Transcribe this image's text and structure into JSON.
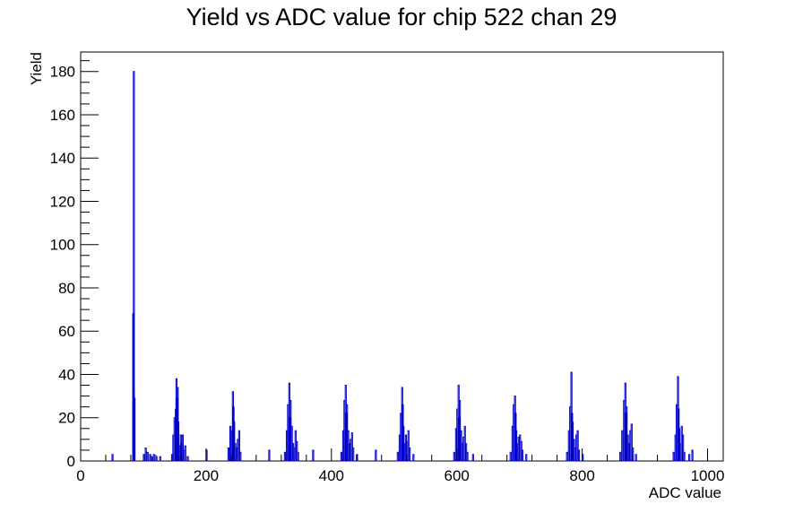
{
  "chart_data": {
    "type": "histogram",
    "title": "Yield vs ADC value for chip 522 chan 29",
    "xlabel": "ADC value",
    "ylabel": "Yield",
    "xlim": [
      0,
      1025
    ],
    "ylim": [
      0,
      189
    ],
    "x_ticks": [
      0,
      200,
      400,
      600,
      800,
      1000
    ],
    "y_ticks": [
      0,
      20,
      40,
      60,
      80,
      100,
      120,
      140,
      160,
      180
    ],
    "bin_width": 1,
    "line_color": "#0000cc",
    "grid": false,
    "legend": false,
    "bins": [
      [
        50,
        3
      ],
      [
        83,
        68
      ],
      [
        84,
        180
      ],
      [
        85,
        29
      ],
      [
        100,
        3
      ],
      [
        103,
        6
      ],
      [
        106,
        4
      ],
      [
        110,
        3
      ],
      [
        113,
        2
      ],
      [
        116,
        3
      ],
      [
        120,
        2
      ],
      [
        126,
        2
      ],
      [
        145,
        3
      ],
      [
        147,
        12
      ],
      [
        149,
        20
      ],
      [
        151,
        24
      ],
      [
        152,
        38
      ],
      [
        153,
        29
      ],
      [
        154,
        34
      ],
      [
        155,
        18
      ],
      [
        157,
        7
      ],
      [
        159,
        12
      ],
      [
        160,
        8
      ],
      [
        162,
        12
      ],
      [
        164,
        5
      ],
      [
        166,
        7
      ],
      [
        170,
        2
      ],
      [
        200,
        5
      ],
      [
        235,
        6
      ],
      [
        238,
        16
      ],
      [
        240,
        14
      ],
      [
        242,
        32
      ],
      [
        243,
        25
      ],
      [
        244,
        18
      ],
      [
        246,
        8
      ],
      [
        248,
        6
      ],
      [
        250,
        10
      ],
      [
        252,
        14
      ],
      [
        254,
        4
      ],
      [
        300,
        5
      ],
      [
        325,
        4
      ],
      [
        328,
        14
      ],
      [
        330,
        26
      ],
      [
        332,
        36
      ],
      [
        333,
        20
      ],
      [
        334,
        28
      ],
      [
        336,
        16
      ],
      [
        338,
        8
      ],
      [
        340,
        6
      ],
      [
        342,
        14
      ],
      [
        344,
        9
      ],
      [
        346,
        4
      ],
      [
        370,
        5
      ],
      [
        415,
        4
      ],
      [
        418,
        14
      ],
      [
        420,
        28
      ],
      [
        422,
        35
      ],
      [
        423,
        22
      ],
      [
        424,
        26
      ],
      [
        426,
        14
      ],
      [
        428,
        8
      ],
      [
        430,
        10
      ],
      [
        432,
        13
      ],
      [
        434,
        6
      ],
      [
        440,
        3
      ],
      [
        470,
        5
      ],
      [
        505,
        4
      ],
      [
        508,
        12
      ],
      [
        510,
        22
      ],
      [
        512,
        34
      ],
      [
        513,
        26
      ],
      [
        514,
        16
      ],
      [
        516,
        8
      ],
      [
        518,
        12
      ],
      [
        520,
        9
      ],
      [
        522,
        14
      ],
      [
        524,
        6
      ],
      [
        530,
        3
      ],
      [
        595,
        4
      ],
      [
        598,
        15
      ],
      [
        600,
        24
      ],
      [
        602,
        35
      ],
      [
        603,
        20
      ],
      [
        604,
        28
      ],
      [
        606,
        14
      ],
      [
        608,
        8
      ],
      [
        610,
        11
      ],
      [
        612,
        16
      ],
      [
        614,
        8
      ],
      [
        616,
        4
      ],
      [
        625,
        3
      ],
      [
        685,
        4
      ],
      [
        688,
        16
      ],
      [
        690,
        26
      ],
      [
        692,
        30
      ],
      [
        693,
        22
      ],
      [
        694,
        14
      ],
      [
        696,
        8
      ],
      [
        698,
        11
      ],
      [
        700,
        12
      ],
      [
        702,
        9
      ],
      [
        704,
        5
      ],
      [
        710,
        3
      ],
      [
        775,
        4
      ],
      [
        778,
        14
      ],
      [
        780,
        25
      ],
      [
        782,
        41
      ],
      [
        783,
        22
      ],
      [
        784,
        18
      ],
      [
        786,
        10
      ],
      [
        788,
        6
      ],
      [
        790,
        12
      ],
      [
        792,
        14
      ],
      [
        794,
        5
      ],
      [
        800,
        3
      ],
      [
        860,
        4
      ],
      [
        863,
        14
      ],
      [
        866,
        28
      ],
      [
        868,
        36
      ],
      [
        869,
        22
      ],
      [
        870,
        25
      ],
      [
        872,
        12
      ],
      [
        874,
        8
      ],
      [
        876,
        14
      ],
      [
        878,
        17
      ],
      [
        880,
        6
      ],
      [
        885,
        3
      ],
      [
        945,
        4
      ],
      [
        948,
        12
      ],
      [
        950,
        26
      ],
      [
        952,
        39
      ],
      [
        953,
        24
      ],
      [
        954,
        15
      ],
      [
        956,
        8
      ],
      [
        958,
        16
      ],
      [
        960,
        12
      ],
      [
        962,
        4
      ],
      [
        970,
        3
      ],
      [
        975,
        5
      ]
    ]
  }
}
